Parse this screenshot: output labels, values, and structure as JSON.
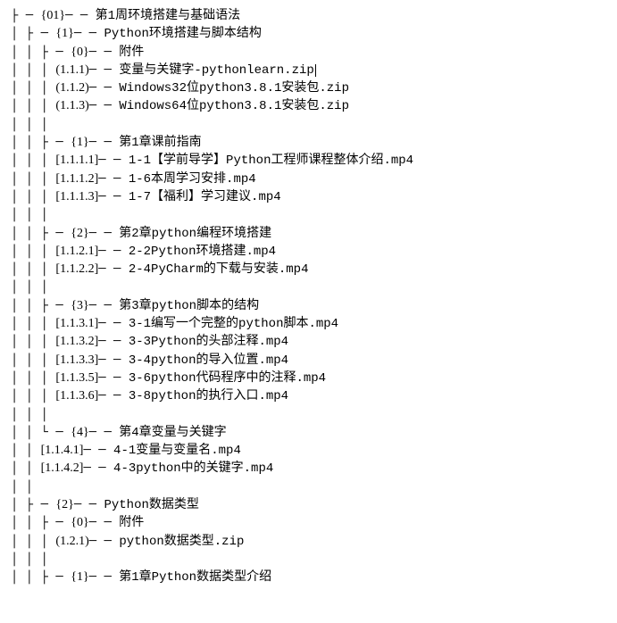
{
  "lines": [
    {
      "prefix": "├ ─ ",
      "bracket": "{01}",
      "text": "─ ─ 第1周环境搭建与基础语法"
    },
    {
      "prefix": "│    ├ ─ ",
      "bracket": "{1}",
      "text": "─ ─ Python环境搭建与脚本结构"
    },
    {
      "prefix": "│    │    ├ ─ ",
      "bracket": "{0}",
      "text": "─ ─ 附件"
    },
    {
      "prefix": "│    │    │         ",
      "bracket": "(1.1.1)",
      "text": "─ ─ 变量与关键字-pythonlearn.zip",
      "cursor": true
    },
    {
      "prefix": "│    │    │         ",
      "bracket": "(1.1.2)",
      "text": "─ ─ Windows32位python3.8.1安装包.zip"
    },
    {
      "prefix": "│    │    │         ",
      "bracket": "(1.1.3)",
      "text": "─ ─ Windows64位python3.8.1安装包.zip"
    },
    {
      "prefix": "│    │    │",
      "bracket": "",
      "text": ""
    },
    {
      "prefix": "│    │    ├ ─ ",
      "bracket": "{1}",
      "text": "─ ─ 第1章课前指南"
    },
    {
      "prefix": "│    │    │         ",
      "bracket": "[1.1.1.1]",
      "text": "─ ─ 1-1【学前导学】Python工程师课程整体介绍.mp4"
    },
    {
      "prefix": "│    │    │         ",
      "bracket": "[1.1.1.2]",
      "text": "─ ─ 1-6本周学习安排.mp4"
    },
    {
      "prefix": "│    │    │         ",
      "bracket": "[1.1.1.3]",
      "text": "─ ─ 1-7【福利】学习建议.mp4"
    },
    {
      "prefix": "│    │    │",
      "bracket": "",
      "text": ""
    },
    {
      "prefix": "│    │    ├ ─ ",
      "bracket": "{2}",
      "text": "─ ─ 第2章python编程环境搭建"
    },
    {
      "prefix": "│    │    │         ",
      "bracket": "[1.1.2.1]",
      "text": "─ ─ 2-2Python环境搭建.mp4"
    },
    {
      "prefix": "│    │    │         ",
      "bracket": "[1.1.2.2]",
      "text": "─ ─ 2-4PyCharm的下载与安装.mp4"
    },
    {
      "prefix": "│    │    │",
      "bracket": "",
      "text": ""
    },
    {
      "prefix": "│    │    ├ ─ ",
      "bracket": "{3}",
      "text": "─ ─ 第3章python脚本的结构"
    },
    {
      "prefix": "│    │    │         ",
      "bracket": "[1.1.3.1]",
      "text": "─ ─ 3-1编写一个完整的python脚本.mp4"
    },
    {
      "prefix": "│    │    │         ",
      "bracket": "[1.1.3.2]",
      "text": "─ ─ 3-3Python的头部注释.mp4"
    },
    {
      "prefix": "│    │    │         ",
      "bracket": "[1.1.3.3]",
      "text": "─ ─ 3-4python的导入位置.mp4"
    },
    {
      "prefix": "│    │    │         ",
      "bracket": "[1.1.3.5]",
      "text": "─ ─ 3-6python代码程序中的注释.mp4"
    },
    {
      "prefix": "│    │    │         ",
      "bracket": "[1.1.3.6]",
      "text": "─ ─ 3-8python的执行入口.mp4"
    },
    {
      "prefix": "│    │    │",
      "bracket": "",
      "text": ""
    },
    {
      "prefix": "│    │    └ ─ ",
      "bracket": "{4}",
      "text": "─ ─ 第4章变量与关键字"
    },
    {
      "prefix": "│    │              ",
      "bracket": "[1.1.4.1]",
      "text": "─ ─ 4-1变量与变量名.mp4"
    },
    {
      "prefix": "│    │              ",
      "bracket": "[1.1.4.2]",
      "text": "─ ─ 4-3python中的关键字.mp4"
    },
    {
      "prefix": "│    │",
      "bracket": "",
      "text": ""
    },
    {
      "prefix": "│    ├ ─ ",
      "bracket": "{2}",
      "text": "─ ─ Python数据类型"
    },
    {
      "prefix": "│    │    ├ ─ ",
      "bracket": "{0}",
      "text": "─ ─ 附件"
    },
    {
      "prefix": "│    │    │         ",
      "bracket": "(1.2.1)",
      "text": "─ ─ python数据类型.zip"
    },
    {
      "prefix": "│    │    │",
      "bracket": "",
      "text": ""
    },
    {
      "prefix": "│    │    ├ ─ ",
      "bracket": "{1}",
      "text": "─ ─ 第1章Python数据类型介绍"
    }
  ]
}
